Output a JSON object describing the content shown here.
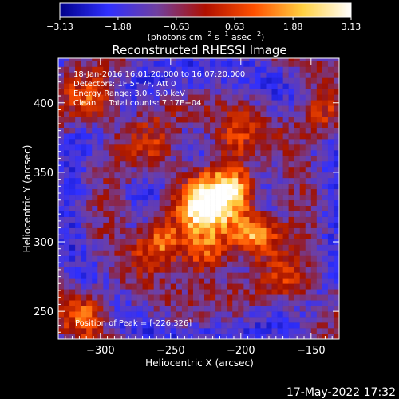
{
  "chart_data": {
    "type": "heatmap",
    "title": "Reconstructed RHESSI Image",
    "xlabel": "Heliocentric X (arcsec)",
    "ylabel": "Heliocentric Y (arcsec)",
    "xlim": [
      -330,
      -130
    ],
    "ylim": [
      230,
      432
    ],
    "xticks": [
      -300,
      -250,
      -200,
      -150
    ],
    "yticks": [
      250,
      300,
      350,
      400
    ],
    "xtick_labels": [
      "−300",
      "−250",
      "−200",
      "−150"
    ],
    "ytick_labels": [
      "250",
      "300",
      "350",
      "400"
    ],
    "colorbar": {
      "range": [
        -3.13,
        3.13
      ],
      "tick_labels": [
        "−3.13",
        "−1.88",
        "−0.63",
        "0.63",
        "1.88",
        "3.13"
      ],
      "unit_parts": [
        "(photons cm",
        "−2",
        " s",
        "−1",
        " asec",
        "−2",
        ")"
      ],
      "colors": [
        "#00008a",
        "#3030ff",
        "#7040a0",
        "#b01000",
        "#ff5000",
        "#ffd040",
        "#ffffff"
      ]
    },
    "annotations": [
      "18-Jan-2016 16:01:20.000 to 16:07:20.000",
      "Detectors: 1F 5F 7F, Att 0",
      "Energy Range: 3.0 - 6.0 keV",
      "Clean     Total counts: 7.17E+04"
    ],
    "peak_label": "Position of Peak = [-226,326]",
    "peak": {
      "x": -226,
      "y": 326
    },
    "features": [
      {
        "x": -226,
        "y": 326,
        "level": 1.0
      },
      {
        "x": -190,
        "y": 305,
        "level": 0.85
      },
      {
        "x": -205,
        "y": 340,
        "level": 0.7
      },
      {
        "x": -258,
        "y": 298,
        "level": 0.72
      },
      {
        "x": -225,
        "y": 290,
        "level": 0.6
      },
      {
        "x": -205,
        "y": 372,
        "level": 0.5
      },
      {
        "x": -260,
        "y": 365,
        "level": 0.45
      },
      {
        "x": -305,
        "y": 400,
        "level": 0.55
      },
      {
        "x": -145,
        "y": 390,
        "level": 0.5
      },
      {
        "x": -310,
        "y": 250,
        "level": 0.5
      },
      {
        "x": -160,
        "y": 270,
        "level": 0.4
      }
    ]
  },
  "timestamp": "17-May-2022 17:32"
}
